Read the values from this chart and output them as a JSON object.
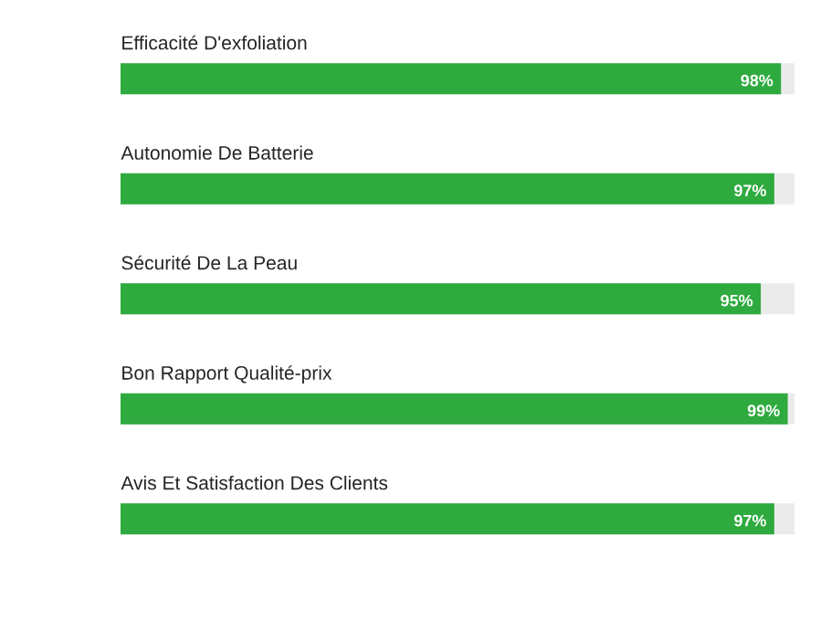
{
  "chart_data": {
    "type": "bar",
    "orientation": "horizontal",
    "categories": [
      "Efficacité D'exfoliation",
      "Autonomie De Batterie",
      "Sécurité De La Peau",
      "Bon Rapport Qualité-prix",
      "Avis Et Satisfaction Des Clients"
    ],
    "values": [
      98,
      97,
      95,
      99,
      97
    ],
    "color": "#2eaa3f",
    "value_labels": [
      "98%",
      "97%",
      "95%",
      "99%",
      "97%"
    ],
    "xlim": [
      0,
      100
    ]
  }
}
